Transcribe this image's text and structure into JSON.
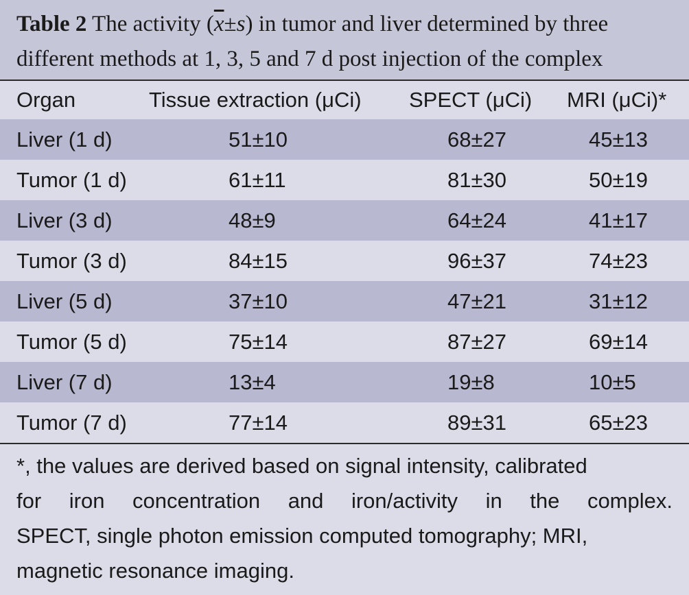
{
  "caption": {
    "label": "Table 2",
    "text_before": " The activity (",
    "xbar": "x",
    "pm": "±",
    "s": "s",
    "text_after": ") in tumor and liver determined by three",
    "line2": "different methods at 1, 3, 5 and 7 d post injection of the complex"
  },
  "table": {
    "headers": [
      "Organ",
      "Tissue extraction (μCi)",
      "SPECT (μCi)",
      "MRI (μCi)*"
    ],
    "rows": [
      [
        "Liver (1 d)",
        "51±10",
        "68±27",
        "45±13"
      ],
      [
        "Tumor (1 d)",
        "61±11",
        "81±30",
        "50±19"
      ],
      [
        "Liver (3 d)",
        "48±9",
        "64±24",
        "41±17"
      ],
      [
        "Tumor (3 d)",
        "84±15",
        "96±37",
        "74±23"
      ],
      [
        "Liver (5 d)",
        "37±10",
        "47±21",
        "31±12"
      ],
      [
        "Tumor (5 d)",
        "75±14",
        "87±27",
        "69±14"
      ],
      [
        "Liver (7 d)",
        "13±4",
        "19±8",
        "10±5"
      ],
      [
        "Tumor (7 d)",
        "77±14",
        "89±31",
        "65±23"
      ]
    ]
  },
  "footnote": {
    "line1": "*, the values are derived based on signal intensity, calibrated",
    "line2": "for iron concentration and iron/activity in the complex.",
    "line3": "SPECT, single photon emission computed tomography; MRI,",
    "line4": "magnetic resonance imaging."
  }
}
